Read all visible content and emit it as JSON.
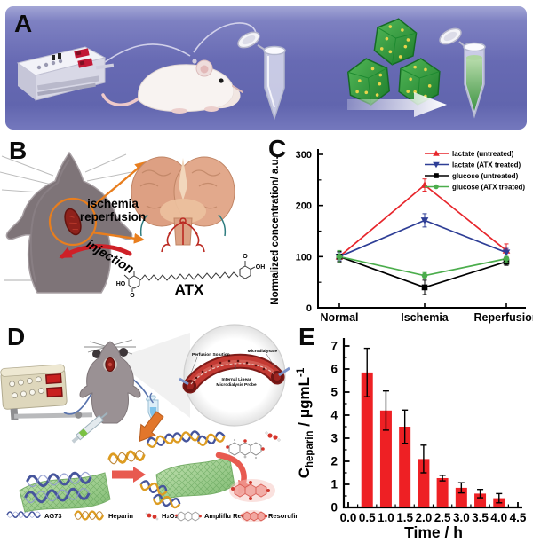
{
  "figure": {
    "panel_labels": {
      "a": "A",
      "b": "B",
      "c": "C",
      "d": "D",
      "e": "E"
    }
  },
  "panel_b": {
    "ischemia_line1": "ischemia",
    "ischemia_line2": "reperfusion",
    "injection_label": "injection",
    "atx": {
      "name": "ATX",
      "ho": "HO",
      "o_left": "O",
      "o_right": "O",
      "oh": "OH"
    }
  },
  "panel_d": {
    "inset": {
      "perfusion": "Perfusion Solution",
      "dialysate": "Microdialysate",
      "probe_line1": "Internal Linear",
      "probe_line2": "Microdialysis Probe"
    },
    "legend": [
      {
        "name": "AG73",
        "icon": "blue-helix"
      },
      {
        "name": "Heparin",
        "icon": "orange-helix"
      },
      {
        "name": "H₂O₂",
        "icon": "h2o2-molecule"
      },
      {
        "name": "Ampliflu Red",
        "icon": "ampliflu-molecule"
      },
      {
        "name": "Resorufin",
        "icon": "resorufin-molecule"
      }
    ]
  },
  "chart_data": [
    {
      "id": "panel-c",
      "type": "line",
      "title": "",
      "ylabel": "Normalized concentration/ a.u.",
      "categories": [
        "Normal",
        "Ischemia",
        "Reperfusion"
      ],
      "ylim": [
        0,
        300
      ],
      "yticks": [
        0,
        100,
        200,
        300
      ],
      "yticks_minor": [
        50,
        150,
        250
      ],
      "grid": false,
      "legend_position": "top-right",
      "series": [
        {
          "name": "lactate (untreated)",
          "color": "#e7262c",
          "marker": "triangle-up",
          "values": [
            100,
            240,
            112
          ],
          "errors": [
            10,
            12,
            13
          ]
        },
        {
          "name": "lactate (ATX treated)",
          "color": "#2e3e96",
          "marker": "triangle-down",
          "values": [
            100,
            171,
            108
          ],
          "errors": [
            8,
            13,
            8
          ]
        },
        {
          "name": "glucose (untreated)",
          "color": "#000000",
          "marker": "square",
          "values": [
            100,
            40,
            90
          ],
          "errors": [
            10,
            14,
            7
          ]
        },
        {
          "name": "glucose (ATX treated)",
          "color": "#4bad4c",
          "marker": "circle",
          "values": [
            100,
            63,
            96
          ],
          "errors": [
            12,
            6,
            7
          ]
        }
      ]
    },
    {
      "id": "panel-e",
      "type": "bar",
      "xlabel": "Time / h",
      "ylabel": "C_heparin / μgmL-1",
      "ylabel_parts": {
        "sym": "C",
        "sub": "heparin",
        "mid": " / ",
        "unit": "μgmL",
        "sup": "-1"
      },
      "bar_color": "#ee2024",
      "x": [
        0.5,
        1.0,
        1.5,
        2.0,
        2.5,
        3.0,
        3.5,
        4.0
      ],
      "values": [
        5.85,
        4.2,
        3.5,
        2.1,
        1.27,
        0.85,
        0.6,
        0.4
      ],
      "errors": [
        1.05,
        0.85,
        0.72,
        0.6,
        0.12,
        0.22,
        0.18,
        0.2
      ],
      "xlim": [
        0,
        4.5
      ],
      "ylim": [
        0,
        7
      ],
      "xticks": [
        "0.0",
        "0.5",
        "1.0",
        "1.5",
        "2.0",
        "2.5",
        "3.0",
        "3.5",
        "4.0",
        "4.5"
      ],
      "yticks": [
        0,
        1,
        2,
        3,
        4,
        5,
        6,
        7
      ],
      "grid": false
    }
  ]
}
